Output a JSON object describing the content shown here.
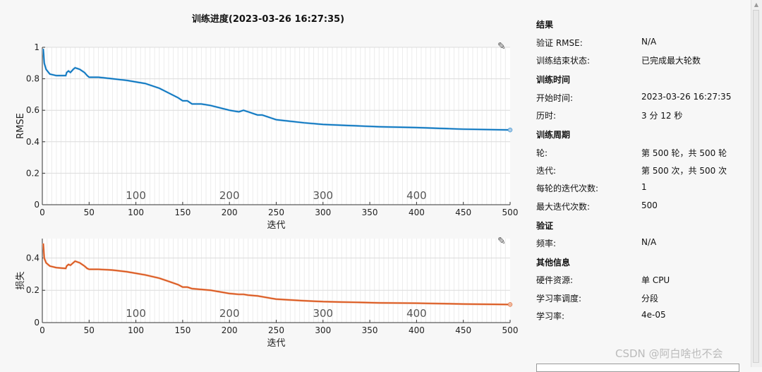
{
  "window": {
    "title": "训练进度(2023-03-26 16:27:35)"
  },
  "colors": {
    "rmse": "#0072bd",
    "rmse_light": "#a9cbe9",
    "loss": "#d95319",
    "loss_light": "#f0b89c",
    "grid": "#dcdcdc",
    "axis": "#333333"
  },
  "icons": {
    "edit": "edit-axes-icon"
  },
  "chart_data": [
    {
      "type": "line",
      "ylabel": "RMSE",
      "xlabel": "迭代",
      "xlim": [
        0,
        500
      ],
      "ylim": [
        0,
        1
      ],
      "xticks": [
        0,
        50,
        100,
        150,
        200,
        250,
        300,
        350,
        400,
        450,
        500
      ],
      "yticks": [
        0,
        0.2,
        0.4,
        0.6,
        0.8,
        1
      ],
      "yticklabels": [
        "0",
        "0.2",
        "0.4",
        "0.6",
        "0.8",
        "1"
      ],
      "epoch_labels": [
        "100",
        "200",
        "300",
        "400"
      ],
      "epoch_positions": [
        100,
        200,
        300,
        400
      ],
      "grid": true,
      "series": [
        {
          "x": [
            1,
            2,
            4,
            8,
            15,
            25,
            26,
            28,
            30,
            33,
            35,
            40,
            45,
            48,
            50,
            60,
            75,
            90,
            100,
            110,
            125,
            135,
            145,
            150,
            155,
            160,
            170,
            180,
            200,
            210,
            215,
            220,
            230,
            235,
            250,
            280,
            300,
            320,
            340,
            360,
            400,
            450,
            500
          ],
          "y": [
            0.99,
            0.9,
            0.86,
            0.83,
            0.82,
            0.82,
            0.84,
            0.85,
            0.84,
            0.86,
            0.87,
            0.86,
            0.84,
            0.82,
            0.81,
            0.81,
            0.8,
            0.79,
            0.78,
            0.77,
            0.74,
            0.71,
            0.68,
            0.66,
            0.66,
            0.64,
            0.64,
            0.63,
            0.6,
            0.59,
            0.6,
            0.59,
            0.57,
            0.57,
            0.54,
            0.52,
            0.51,
            0.505,
            0.5,
            0.495,
            0.49,
            0.48,
            0.475
          ]
        }
      ]
    },
    {
      "type": "line",
      "ylabel": "损失",
      "xlabel": "迭代",
      "xlim": [
        0,
        500
      ],
      "ylim": [
        0,
        0.52
      ],
      "xticks": [
        0,
        50,
        100,
        150,
        200,
        250,
        300,
        350,
        400,
        450,
        500
      ],
      "yticks": [
        0,
        0.2,
        0.4
      ],
      "yticklabels": [
        "0",
        "0.2",
        "0.4"
      ],
      "epoch_labels": [
        "100",
        "200",
        "300",
        "400"
      ],
      "epoch_positions": [
        100,
        200,
        300,
        400
      ],
      "grid": true,
      "series": [
        {
          "x": [
            1,
            2,
            4,
            8,
            15,
            25,
            26,
            28,
            30,
            33,
            35,
            40,
            45,
            48,
            50,
            60,
            75,
            90,
            100,
            110,
            125,
            135,
            145,
            150,
            155,
            160,
            170,
            180,
            200,
            210,
            215,
            220,
            230,
            235,
            250,
            280,
            300,
            320,
            340,
            360,
            400,
            450,
            500
          ],
          "y": [
            0.49,
            0.4,
            0.37,
            0.35,
            0.34,
            0.335,
            0.35,
            0.36,
            0.355,
            0.37,
            0.38,
            0.37,
            0.35,
            0.335,
            0.33,
            0.33,
            0.325,
            0.315,
            0.305,
            0.295,
            0.275,
            0.255,
            0.235,
            0.22,
            0.22,
            0.21,
            0.205,
            0.2,
            0.18,
            0.175,
            0.175,
            0.17,
            0.165,
            0.16,
            0.145,
            0.135,
            0.13,
            0.127,
            0.125,
            0.122,
            0.12,
            0.115,
            0.112
          ]
        }
      ]
    }
  ],
  "panel": {
    "sections": [
      {
        "heading": "结果",
        "rows": [
          {
            "label": "验证 RMSE:",
            "value": "N/A"
          },
          {
            "label": "训练结束状态:",
            "value": "已完成最大轮数"
          }
        ]
      },
      {
        "heading": "训练时间",
        "rows": [
          {
            "label": "开始时间:",
            "value": "2023-03-26 16:27:35"
          },
          {
            "label": "历时:",
            "value": "3 分 12 秒"
          }
        ]
      },
      {
        "heading": "训练周期",
        "rows": [
          {
            "label": "轮:",
            "value": "第 500 轮，共 500 轮"
          },
          {
            "label": "迭代:",
            "value": "第 500 次，共 500 次"
          },
          {
            "label": "每轮的迭代次数:",
            "value": "1"
          },
          {
            "label": "最大迭代次数:",
            "value": "500"
          }
        ]
      },
      {
        "heading": "验证",
        "rows": [
          {
            "label": "频率:",
            "value": "N/A"
          }
        ]
      },
      {
        "heading": "其他信息",
        "rows": [
          {
            "label": "硬件资源:",
            "value": "单 CPU"
          },
          {
            "label": "学习率调度:",
            "value": "分段"
          },
          {
            "label": "学习率:",
            "value": "4e-05"
          }
        ]
      }
    ]
  },
  "watermark": "CSDN @阿白啥也不会"
}
